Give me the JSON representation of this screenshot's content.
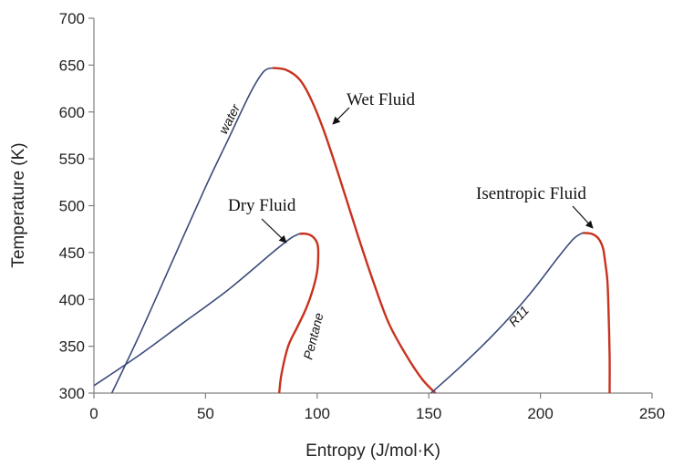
{
  "chart_data": {
    "type": "line",
    "xlabel": "Entropy (J/mol·K)",
    "ylabel": "Temperature (K)",
    "xlim": [
      0,
      250
    ],
    "ylim": [
      300,
      700
    ],
    "xticks": [
      "0",
      "50",
      "100",
      "150",
      "200",
      "250"
    ],
    "yticks": [
      "300",
      "350",
      "400",
      "450",
      "500",
      "550",
      "600",
      "650",
      "700"
    ],
    "grid": false,
    "colors": {
      "liquid": "#3b4a7a",
      "vapor": "#c8321e",
      "axis": "#7f7f7f"
    },
    "series": [
      {
        "name": "water",
        "liquid_x": [
          8,
          20,
          35,
          50,
          60,
          70,
          76,
          80
        ],
        "liquid_y": [
          300,
          360,
          440,
          520,
          570,
          620,
          643,
          647
        ],
        "vapor_x": [
          80,
          86,
          92,
          97,
          103,
          110,
          118,
          125,
          132,
          140,
          147,
          153
        ],
        "vapor_y": [
          647,
          645,
          635,
          615,
          580,
          530,
          470,
          420,
          375,
          340,
          315,
          300
        ]
      },
      {
        "name": "Pentane",
        "liquid_x": [
          0,
          20,
          40,
          60,
          80,
          88,
          92
        ],
        "liquid_y": [
          308,
          340,
          375,
          410,
          450,
          465,
          470
        ],
        "vapor_x": [
          92,
          95,
          98,
          100,
          100.5,
          100,
          98,
          95,
          91,
          87,
          84,
          83
        ],
        "vapor_y": [
          470,
          470,
          467,
          460,
          450,
          430,
          410,
          390,
          370,
          350,
          320,
          300
        ]
      },
      {
        "name": "R11",
        "liquid_x": [
          151,
          165,
          180,
          195,
          208,
          215,
          219
        ],
        "liquid_y": [
          300,
          330,
          365,
          405,
          445,
          465,
          471
        ],
        "vapor_x": [
          219,
          223,
          226,
          228,
          229,
          230,
          230.5,
          231,
          231
        ],
        "vapor_y": [
          471,
          470,
          465,
          455,
          440,
          420,
          390,
          340,
          300
        ]
      }
    ],
    "annotations": [
      {
        "text": "Wet Fluid",
        "arrow_to": [
          101,
          610
        ]
      },
      {
        "text": "Dry Fluid",
        "arrow_to": [
          86,
          462
        ]
      },
      {
        "text": "Isentropic Fluid",
        "arrow_to": [
          221,
          473
        ]
      }
    ]
  }
}
